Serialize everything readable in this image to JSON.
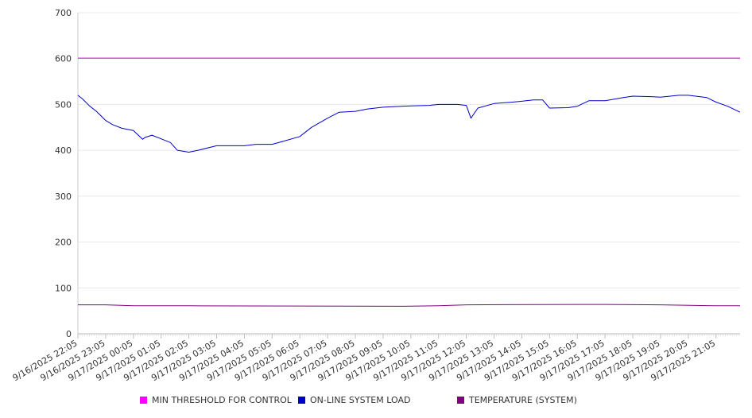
{
  "chart_data": {
    "type": "line",
    "ylim": [
      0,
      700
    ],
    "yticks": [
      0,
      100,
      200,
      300,
      400,
      500,
      600,
      700
    ],
    "grid": true,
    "legend_position": "bottom",
    "categories": [
      "9/16/2025 22:05",
      "9/16/2025 23:05",
      "9/17/2025 00:05",
      "9/17/2025 01:05",
      "9/17/2025 02:05",
      "9/17/2025 03:05",
      "9/17/2025 04:05",
      "9/17/2025 05:05",
      "9/17/2025 06:05",
      "9/17/2025 07:05",
      "9/17/2025 08:05",
      "9/17/2025 09:05",
      "9/17/2025 10:05",
      "9/17/2025 11:05",
      "9/17/2025 12:05",
      "9/17/2025 13:05",
      "9/17/2025 14:05",
      "9/17/2025 15:05",
      "9/17/2025 16:05",
      "9/17/2025 17:05",
      "9/17/2025 18:05",
      "9/17/2025 19:05",
      "9/17/2025 20:05",
      "9/17/2025 21:05"
    ],
    "x_end": "9/17/2025 21:57",
    "series": [
      {
        "name": "MIN THRESHOLD FOR CONTROL",
        "color": "#cc00cc",
        "x": [
          "9/16/2025 22:05",
          "9/17/2025 21:57"
        ],
        "values": [
          601,
          601
        ]
      },
      {
        "name": "ON-LINE SYSTEM LOAD",
        "color": "#0000cc",
        "x": [
          "9/16/2025 22:05",
          "9/16/2025 22:15",
          "9/16/2025 22:30",
          "9/16/2025 22:45",
          "9/16/2025 23:05",
          "9/16/2025 23:20",
          "9/16/2025 23:40",
          "9/17/2025 00:05",
          "9/17/2025 00:25",
          "9/17/2025 00:30",
          "9/17/2025 00:45",
          "9/17/2025 01:05",
          "9/17/2025 01:25",
          "9/17/2025 01:40",
          "9/17/2025 02:05",
          "9/17/2025 02:25",
          "9/17/2025 03:05",
          "9/17/2025 03:30",
          "9/17/2025 04:05",
          "9/17/2025 04:30",
          "9/17/2025 05:05",
          "9/17/2025 05:30",
          "9/17/2025 06:05",
          "9/17/2025 06:30",
          "9/17/2025 07:05",
          "9/17/2025 07:30",
          "9/17/2025 08:05",
          "9/17/2025 08:30",
          "9/17/2025 09:05",
          "9/17/2025 09:45",
          "9/17/2025 10:05",
          "9/17/2025 10:45",
          "9/17/2025 11:05",
          "9/17/2025 11:45",
          "9/17/2025 12:05",
          "9/17/2025 12:15",
          "9/17/2025 12:30",
          "9/17/2025 13:05",
          "9/17/2025 13:45",
          "9/17/2025 14:05",
          "9/17/2025 14:30",
          "9/17/2025 14:50",
          "9/17/2025 15:05",
          "9/17/2025 15:45",
          "9/17/2025 16:05",
          "9/17/2025 16:30",
          "9/17/2025 17:05",
          "9/17/2025 17:45",
          "9/17/2025 18:05",
          "9/17/2025 18:45",
          "9/17/2025 19:05",
          "9/17/2025 19:45",
          "9/17/2025 20:05",
          "9/17/2025 20:45",
          "9/17/2025 21:05",
          "9/17/2025 21:30",
          "9/17/2025 21:57"
        ],
        "values": [
          520,
          512,
          497,
          485,
          465,
          456,
          448,
          443,
          424,
          428,
          433,
          425,
          417,
          400,
          396,
          400,
          410,
          410,
          410,
          413,
          413,
          420,
          430,
          450,
          470,
          483,
          485,
          490,
          494,
          496,
          497,
          498,
          500,
          500,
          498,
          470,
          492,
          502,
          505,
          507,
          510,
          510,
          492,
          493,
          496,
          508,
          508,
          515,
          518,
          517,
          516,
          520,
          520,
          515,
          505,
          496,
          483
        ]
      },
      {
        "name": "TEMPERATURE (SYSTEM)",
        "color": "#800080",
        "x": [
          "9/16/2025 22:05",
          "9/16/2025 23:05",
          "9/17/2025 00:05",
          "9/17/2025 02:05",
          "9/17/2025 09:45",
          "9/17/2025 11:05",
          "9/17/2025 12:05",
          "9/17/2025 16:05",
          "9/17/2025 17:05",
          "9/17/2025 19:05",
          "9/17/2025 21:05",
          "9/17/2025 21:57"
        ],
        "values": [
          63,
          63,
          61,
          61,
          60,
          61,
          63,
          64,
          64,
          63,
          61,
          61
        ]
      }
    ]
  }
}
